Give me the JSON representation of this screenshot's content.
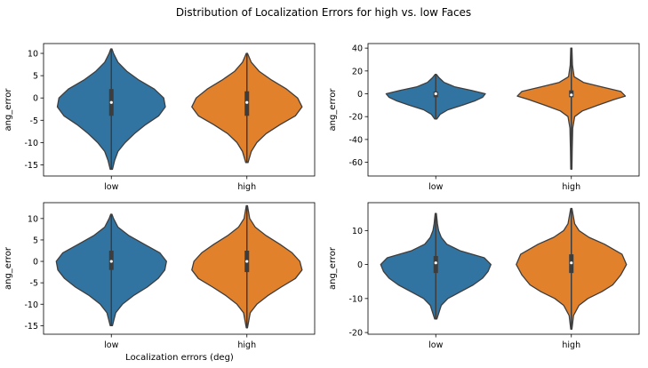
{
  "figure": {
    "suptitle": "Distribution of Localization Errors for high vs. low Faces",
    "xlabel": "Localization errors (deg)"
  },
  "colors": {
    "low": "#3274a1",
    "high": "#e1812c",
    "edge": "#3d3d3d",
    "box": "#3d3d3d",
    "median": "#ffffff"
  },
  "chart_data": [
    {
      "type": "violin",
      "categories": [
        "low",
        "high"
      ],
      "xlabel": "",
      "ylabel": "ang_error",
      "ylim": [
        -17.5,
        12.2
      ],
      "yticks": [
        -15,
        -10,
        -5,
        0,
        5,
        10
      ],
      "violins": [
        {
          "category": "low",
          "min": -16,
          "max": 11,
          "q1": -4,
          "median": -1,
          "q3": 2,
          "density": [
            [
              -16,
              0.02
            ],
            [
              -14,
              0.06
            ],
            [
              -12,
              0.12
            ],
            [
              -10,
              0.25
            ],
            [
              -8,
              0.42
            ],
            [
              -6,
              0.62
            ],
            [
              -4,
              0.86
            ],
            [
              -2,
              0.98
            ],
            [
              0,
              0.95
            ],
            [
              2,
              0.78
            ],
            [
              4,
              0.5
            ],
            [
              6,
              0.28
            ],
            [
              8,
              0.12
            ],
            [
              10,
              0.04
            ],
            [
              11,
              0.01
            ]
          ]
        },
        {
          "category": "high",
          "min": -14.5,
          "max": 10,
          "q1": -4,
          "median": -1,
          "q3": 1.5,
          "density": [
            [
              -14.5,
              0.02
            ],
            [
              -12,
              0.08
            ],
            [
              -10,
              0.18
            ],
            [
              -8,
              0.35
            ],
            [
              -6,
              0.6
            ],
            [
              -4,
              0.88
            ],
            [
              -2,
              1.0
            ],
            [
              0,
              0.92
            ],
            [
              2,
              0.72
            ],
            [
              4,
              0.45
            ],
            [
              6,
              0.22
            ],
            [
              8,
              0.08
            ],
            [
              10,
              0.01
            ]
          ]
        }
      ]
    },
    {
      "type": "violin",
      "categories": [
        "low",
        "high"
      ],
      "xlabel": "",
      "ylabel": "ang_error",
      "ylim": [
        -72,
        44
      ],
      "yticks": [
        -60,
        -40,
        -20,
        0,
        20,
        40
      ],
      "violins": [
        {
          "category": "low",
          "min": -22,
          "max": 17,
          "q1": -3,
          "median": 0,
          "q3": 2,
          "density": [
            [
              -22,
              0.02
            ],
            [
              -18,
              0.08
            ],
            [
              -14,
              0.22
            ],
            [
              -10,
              0.48
            ],
            [
              -6,
              0.72
            ],
            [
              -3,
              0.85
            ],
            [
              0,
              0.9
            ],
            [
              3,
              0.65
            ],
            [
              6,
              0.35
            ],
            [
              10,
              0.15
            ],
            [
              14,
              0.06
            ],
            [
              17,
              0.01
            ]
          ]
        },
        {
          "category": "high",
          "min": -66,
          "max": 40,
          "q1": -3,
          "median": -1,
          "q3": 3,
          "density": [
            [
              -66,
              0.01
            ],
            [
              -50,
              0.015
            ],
            [
              -30,
              0.025
            ],
            [
              -20,
              0.06
            ],
            [
              -15,
              0.2
            ],
            [
              -10,
              0.48
            ],
            [
              -5,
              0.78
            ],
            [
              -2,
              0.98
            ],
            [
              2,
              0.9
            ],
            [
              6,
              0.55
            ],
            [
              10,
              0.22
            ],
            [
              15,
              0.05
            ],
            [
              25,
              0.02
            ],
            [
              40,
              0.01
            ]
          ]
        }
      ]
    },
    {
      "type": "violin",
      "categories": [
        "low",
        "high"
      ],
      "xlabel": "Localization errors (deg)",
      "ylabel": "ang_error",
      "ylim": [
        -17,
        13.7
      ],
      "yticks": [
        -15,
        -10,
        -5,
        0,
        5,
        10
      ],
      "violins": [
        {
          "category": "low",
          "min": -15,
          "max": 11,
          "q1": -2,
          "median": 0,
          "q3": 2.5,
          "density": [
            [
              -15,
              0.02
            ],
            [
              -12,
              0.08
            ],
            [
              -10,
              0.2
            ],
            [
              -8,
              0.4
            ],
            [
              -6,
              0.65
            ],
            [
              -4,
              0.85
            ],
            [
              -2,
              0.97
            ],
            [
              0,
              1.0
            ],
            [
              2,
              0.88
            ],
            [
              4,
              0.6
            ],
            [
              6,
              0.32
            ],
            [
              8,
              0.12
            ],
            [
              10,
              0.04
            ],
            [
              11,
              0.01
            ]
          ]
        },
        {
          "category": "high",
          "min": -15.5,
          "max": 13,
          "q1": -2.5,
          "median": 0,
          "q3": 2.5,
          "density": [
            [
              -15.5,
              0.01
            ],
            [
              -12,
              0.06
            ],
            [
              -10,
              0.18
            ],
            [
              -8,
              0.38
            ],
            [
              -6,
              0.62
            ],
            [
              -4,
              0.88
            ],
            [
              -2,
              1.0
            ],
            [
              0,
              0.96
            ],
            [
              2,
              0.82
            ],
            [
              4,
              0.6
            ],
            [
              6,
              0.35
            ],
            [
              8,
              0.15
            ],
            [
              10,
              0.05
            ],
            [
              13,
              0.01
            ]
          ]
        }
      ]
    },
    {
      "type": "violin",
      "categories": [
        "low",
        "high"
      ],
      "xlabel": "",
      "ylabel": "ang_error",
      "ylim": [
        -20.5,
        18.2
      ],
      "yticks": [
        -20,
        -10,
        0,
        10
      ],
      "violins": [
        {
          "category": "low",
          "min": -16,
          "max": 15,
          "q1": -2.5,
          "median": 0.5,
          "q3": 2.5,
          "density": [
            [
              -16,
              0.02
            ],
            [
              -12,
              0.1
            ],
            [
              -10,
              0.22
            ],
            [
              -8,
              0.45
            ],
            [
              -6,
              0.68
            ],
            [
              -4,
              0.85
            ],
            [
              -2,
              0.95
            ],
            [
              0,
              1.0
            ],
            [
              2,
              0.88
            ],
            [
              4,
              0.45
            ],
            [
              6,
              0.2
            ],
            [
              8,
              0.1
            ],
            [
              10,
              0.05
            ],
            [
              12,
              0.03
            ],
            [
              15,
              0.01
            ]
          ]
        },
        {
          "category": "high",
          "min": -19,
          "max": 16.5,
          "q1": -2.5,
          "median": 0.5,
          "q3": 3,
          "density": [
            [
              -19,
              0.01
            ],
            [
              -15,
              0.04
            ],
            [
              -12,
              0.14
            ],
            [
              -10,
              0.3
            ],
            [
              -8,
              0.55
            ],
            [
              -6,
              0.75
            ],
            [
              -3,
              0.9
            ],
            [
              0,
              1.0
            ],
            [
              3,
              0.92
            ],
            [
              6,
              0.6
            ],
            [
              8,
              0.32
            ],
            [
              10,
              0.14
            ],
            [
              12,
              0.06
            ],
            [
              16.5,
              0.01
            ]
          ]
        }
      ]
    }
  ]
}
